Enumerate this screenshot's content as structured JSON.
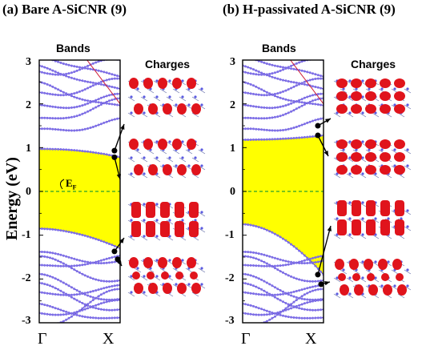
{
  "panels": [
    {
      "title": "(a) Bare A-SiCNR (9)",
      "bands_label": "Bands",
      "charges_label": "Charges",
      "fermi_label": "E",
      "fermi_sub": "F"
    },
    {
      "title": "(b) H-passivated A-SiCNR (9)",
      "bands_label": "Bands",
      "charges_label": "Charges"
    }
  ],
  "y_axis": {
    "label": "Energy (eV)",
    "ticks": [
      "3",
      "2",
      "1",
      "0",
      "-1",
      "-2",
      "-3"
    ]
  },
  "x_axis": {
    "ticks": [
      "Γ",
      "X"
    ]
  },
  "colors": {
    "band_line": "#4b34b8",
    "band_dot": "#7d6ee8",
    "gap_fill": "#ffff00",
    "fermi_line": "#2aa12a",
    "orbital": "#e0141c",
    "atom": "#5a5ae0"
  },
  "chart_data": [
    {
      "type": "line",
      "title": "(a) Bare A-SiCNR (9)",
      "xlabel": "",
      "ylabel": "Energy (eV)",
      "ylim": [
        -3,
        3
      ],
      "x_ticks": [
        "Γ",
        "X"
      ],
      "gap_edges": {
        "valence_max": -0.85,
        "conduction_min": 0.97,
        "valence_at_X": -1.3,
        "conduction_at_X": 0.78
      },
      "marked_states_eV": [
        0.93,
        0.78,
        -1.37,
        -1.55
      ]
    },
    {
      "type": "line",
      "title": "(b) H-passivated A-SiCNR (9)",
      "xlabel": "",
      "ylabel": "Energy (eV)",
      "ylim": [
        -3,
        3
      ],
      "x_ticks": [
        "Γ",
        "X"
      ],
      "gap_edges": {
        "valence_max": -0.75,
        "conduction_min": 1.18,
        "valence_at_X": -1.9,
        "conduction_at_X": 1.28
      },
      "marked_states_eV": [
        1.5,
        1.28,
        -1.9,
        -2.12
      ]
    }
  ]
}
